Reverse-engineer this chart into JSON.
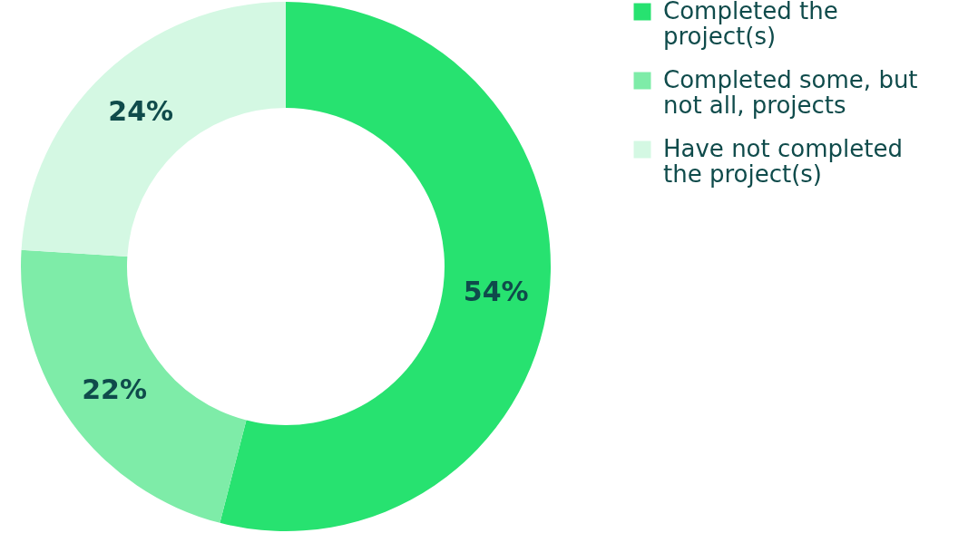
{
  "chart_data": {
    "type": "donut",
    "categories": [
      "Completed the project(s)",
      "Completed some, but not all, projects",
      "Have not completed the project(s)"
    ],
    "values": [
      54,
      22,
      24
    ],
    "colors": [
      "#27e270",
      "#7eeca8",
      "#d4f8e3"
    ],
    "value_labels": [
      "54%",
      "22%",
      "24%"
    ],
    "legend": "right"
  }
}
